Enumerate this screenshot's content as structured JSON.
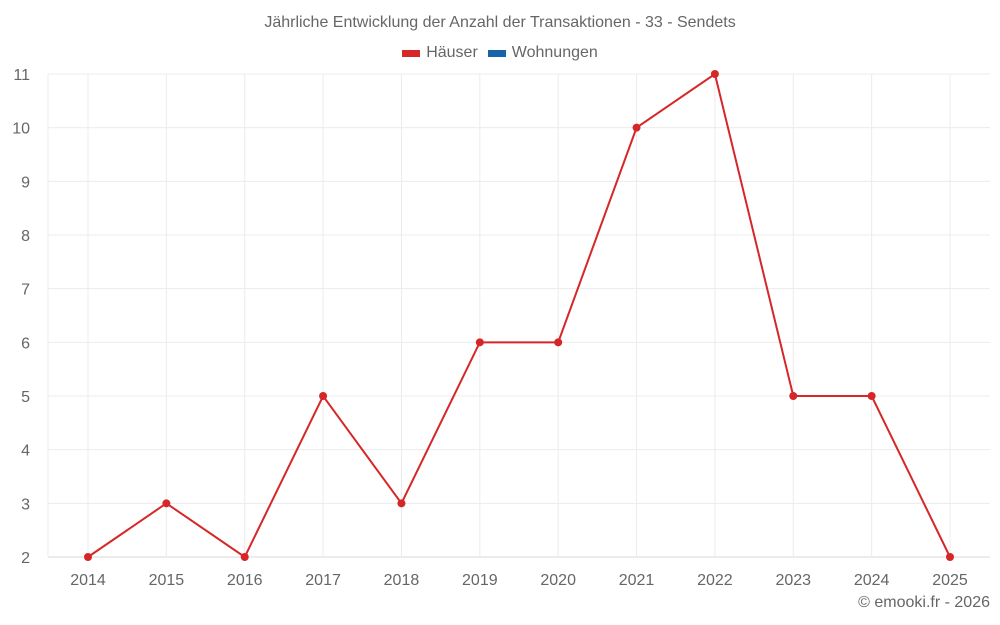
{
  "title": "Jährliche Entwicklung der Anzahl der Transaktionen - 33 - Sendets",
  "legend": [
    {
      "label": "Häuser",
      "color": "#d62728"
    },
    {
      "label": "Wohnungen",
      "color": "#1565a8"
    }
  ],
  "credit": "© emooki.fr - 2026",
  "chart_data": {
    "type": "line",
    "title": "Jährliche Entwicklung der Anzahl der Transaktionen - 33 - Sendets",
    "categories": [
      "2014",
      "2015",
      "2016",
      "2017",
      "2018",
      "2019",
      "2020",
      "2021",
      "2022",
      "2023",
      "2024",
      "2025"
    ],
    "series": [
      {
        "name": "Häuser",
        "color": "#d62728",
        "values": [
          2,
          3,
          2,
          5,
          3,
          6,
          6,
          10,
          11,
          5,
          5,
          2
        ]
      },
      {
        "name": "Wohnungen",
        "color": "#1565a8",
        "values": []
      }
    ],
    "xlabel": "",
    "ylabel": "",
    "ylim": [
      2,
      11
    ],
    "yticks": [
      2,
      3,
      4,
      5,
      6,
      7,
      8,
      9,
      10,
      11
    ],
    "grid": true,
    "legend_position": "top"
  }
}
